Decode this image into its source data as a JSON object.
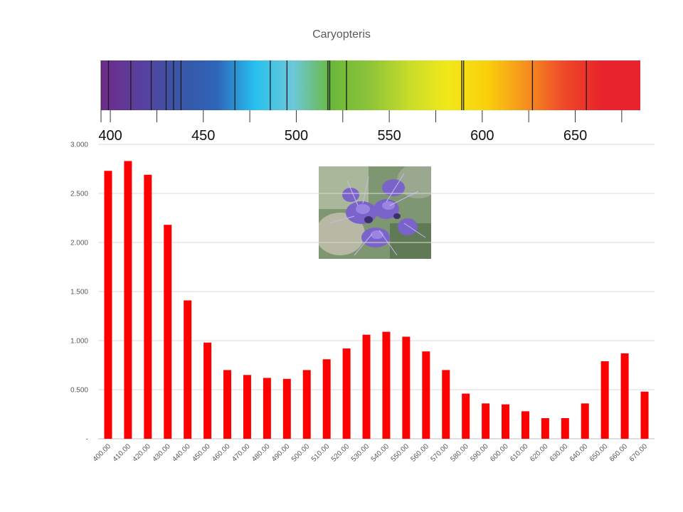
{
  "chart_data": {
    "type": "bar",
    "title": "Caryopteris",
    "xlabel": "",
    "ylabel": "",
    "ylim": [
      0,
      3.0
    ],
    "grid": true,
    "bar_color": "#ff0000",
    "y_ticks": [
      "-",
      "0.500",
      "1.000",
      "1.500",
      "2.000",
      "2.500",
      "3.000"
    ],
    "y_tick_values": [
      0,
      0.5,
      1.0,
      1.5,
      2.0,
      2.5,
      3.0
    ],
    "categories": [
      "400.00",
      "410.00",
      "420.00",
      "430.00",
      "440.00",
      "450.00",
      "460.00",
      "470.00",
      "480.00",
      "490.00",
      "500.00",
      "510.00",
      "520.00",
      "530.00",
      "540.00",
      "550.00",
      "560.00",
      "570.00",
      "580.00",
      "590.00",
      "600.00",
      "610.00",
      "620.00",
      "630.00",
      "640.00",
      "650.00",
      "660.00",
      "670.00"
    ],
    "values": [
      2.73,
      2.83,
      2.69,
      2.18,
      1.41,
      0.98,
      0.7,
      0.65,
      0.62,
      0.61,
      0.7,
      0.81,
      0.92,
      1.06,
      1.09,
      1.04,
      0.89,
      0.7,
      0.46,
      0.36,
      0.35,
      0.28,
      0.21,
      0.21,
      0.36,
      0.79,
      0.87,
      0.48
    ]
  },
  "spectrum": {
    "range_nm": [
      395,
      685
    ],
    "labels": [
      "400",
      "450",
      "500",
      "550",
      "600",
      "650"
    ],
    "label_values": [
      400,
      450,
      500,
      550,
      600,
      650
    ],
    "tick_values": [
      400,
      425,
      450,
      475,
      500,
      525,
      550,
      575,
      600,
      625,
      650,
      675
    ],
    "absorption_lines_nm": [
      399,
      411,
      422,
      430,
      434,
      438,
      467,
      486,
      495,
      517,
      518,
      527,
      589,
      590,
      627,
      656
    ],
    "gradient_colors": [
      "#6d2a8a",
      "#5a3f9e",
      "#3a55a5",
      "#2e64b8",
      "#28c0ee",
      "#6cc8d8",
      "#6ab83a",
      "#8fc43a",
      "#c8dc2a",
      "#f2e81a",
      "#f9d10a",
      "#f6931e",
      "#ef4a2a",
      "#e8232b",
      "#e8232b"
    ]
  },
  "photo": {
    "subject": "purple caryopteris flowers"
  }
}
